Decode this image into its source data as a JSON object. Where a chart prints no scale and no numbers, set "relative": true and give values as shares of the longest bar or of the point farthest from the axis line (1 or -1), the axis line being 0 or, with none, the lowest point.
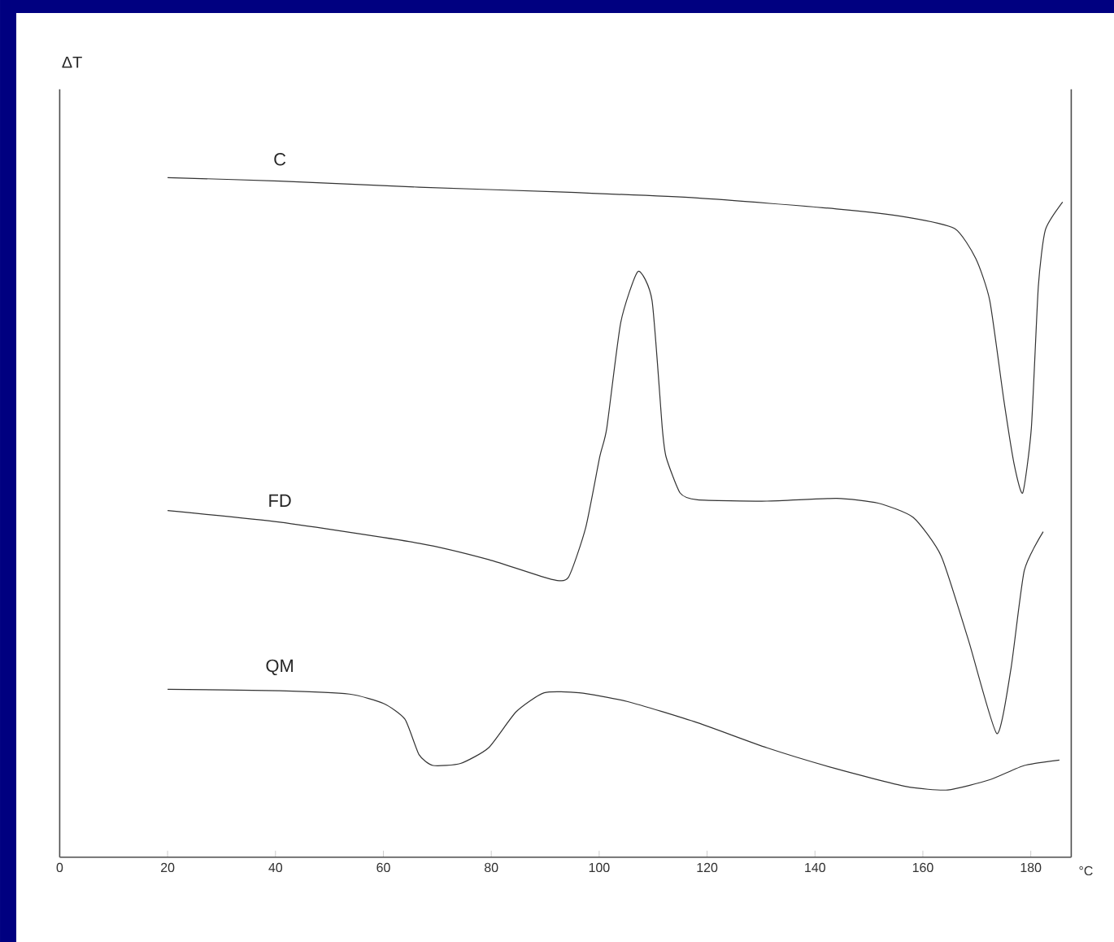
{
  "chart_data": {
    "type": "line",
    "relative": true,
    "xlabel": "°C",
    "annotations": [
      "ΔT"
    ],
    "xlim": [
      0,
      187.5
    ],
    "xticks": [
      0,
      20,
      40,
      60,
      80,
      100,
      120,
      140,
      160,
      180
    ],
    "grid": false,
    "series": [
      {
        "name": "C",
        "color": "#333333",
        "x": [
          20,
          40.8,
          66.6,
          92.4,
          118.2,
          144.0,
          156.9,
          165.9,
          169.8,
          172.4,
          175.0,
          176.9,
          178.5,
          180.1,
          181.4,
          182.7,
          185.9
        ],
        "values": [
          1.0,
          0.995,
          0.986,
          0.979,
          0.97,
          0.954,
          0.942,
          0.925,
          0.881,
          0.819,
          0.673,
          0.579,
          0.536,
          0.631,
          0.84,
          0.923,
          0.964
        ]
      },
      {
        "name": "FD",
        "color": "#333333",
        "x": [
          20,
          40.8,
          66.6,
          79.5,
          91.1,
          94.3,
          97.5,
          100.1,
          101.4,
          104.0,
          107.2,
          109.8,
          111.7,
          112.4,
          115.0,
          118.2,
          131.1,
          144.0,
          151.7,
          158.2,
          163.4,
          168.5,
          173.7,
          176.3,
          178.8,
          182.3
        ],
        "values": [
          0.51,
          0.493,
          0.462,
          0.438,
          0.409,
          0.412,
          0.485,
          0.589,
          0.631,
          0.787,
          0.862,
          0.819,
          0.631,
          0.589,
          0.536,
          0.526,
          0.524,
          0.528,
          0.521,
          0.5,
          0.443,
          0.318,
          0.182,
          0.276,
          0.422,
          0.479
        ]
      },
      {
        "name": "QM",
        "color": "#333333",
        "x": [
          20,
          40.8,
          53.7,
          60.1,
          64.0,
          66.6,
          69.2,
          74.3,
          79.5,
          84.6,
          89.8,
          96.3,
          105.3,
          118.2,
          131.1,
          144.0,
          156.9,
          164.6,
          172.4,
          178.8,
          185.3
        ],
        "values": [
          0.247,
          0.245,
          0.24,
          0.226,
          0.203,
          0.151,
          0.135,
          0.138,
          0.161,
          0.214,
          0.242,
          0.242,
          0.229,
          0.198,
          0.161,
          0.13,
          0.104,
          0.099,
          0.114,
          0.135,
          0.143
        ]
      }
    ]
  }
}
